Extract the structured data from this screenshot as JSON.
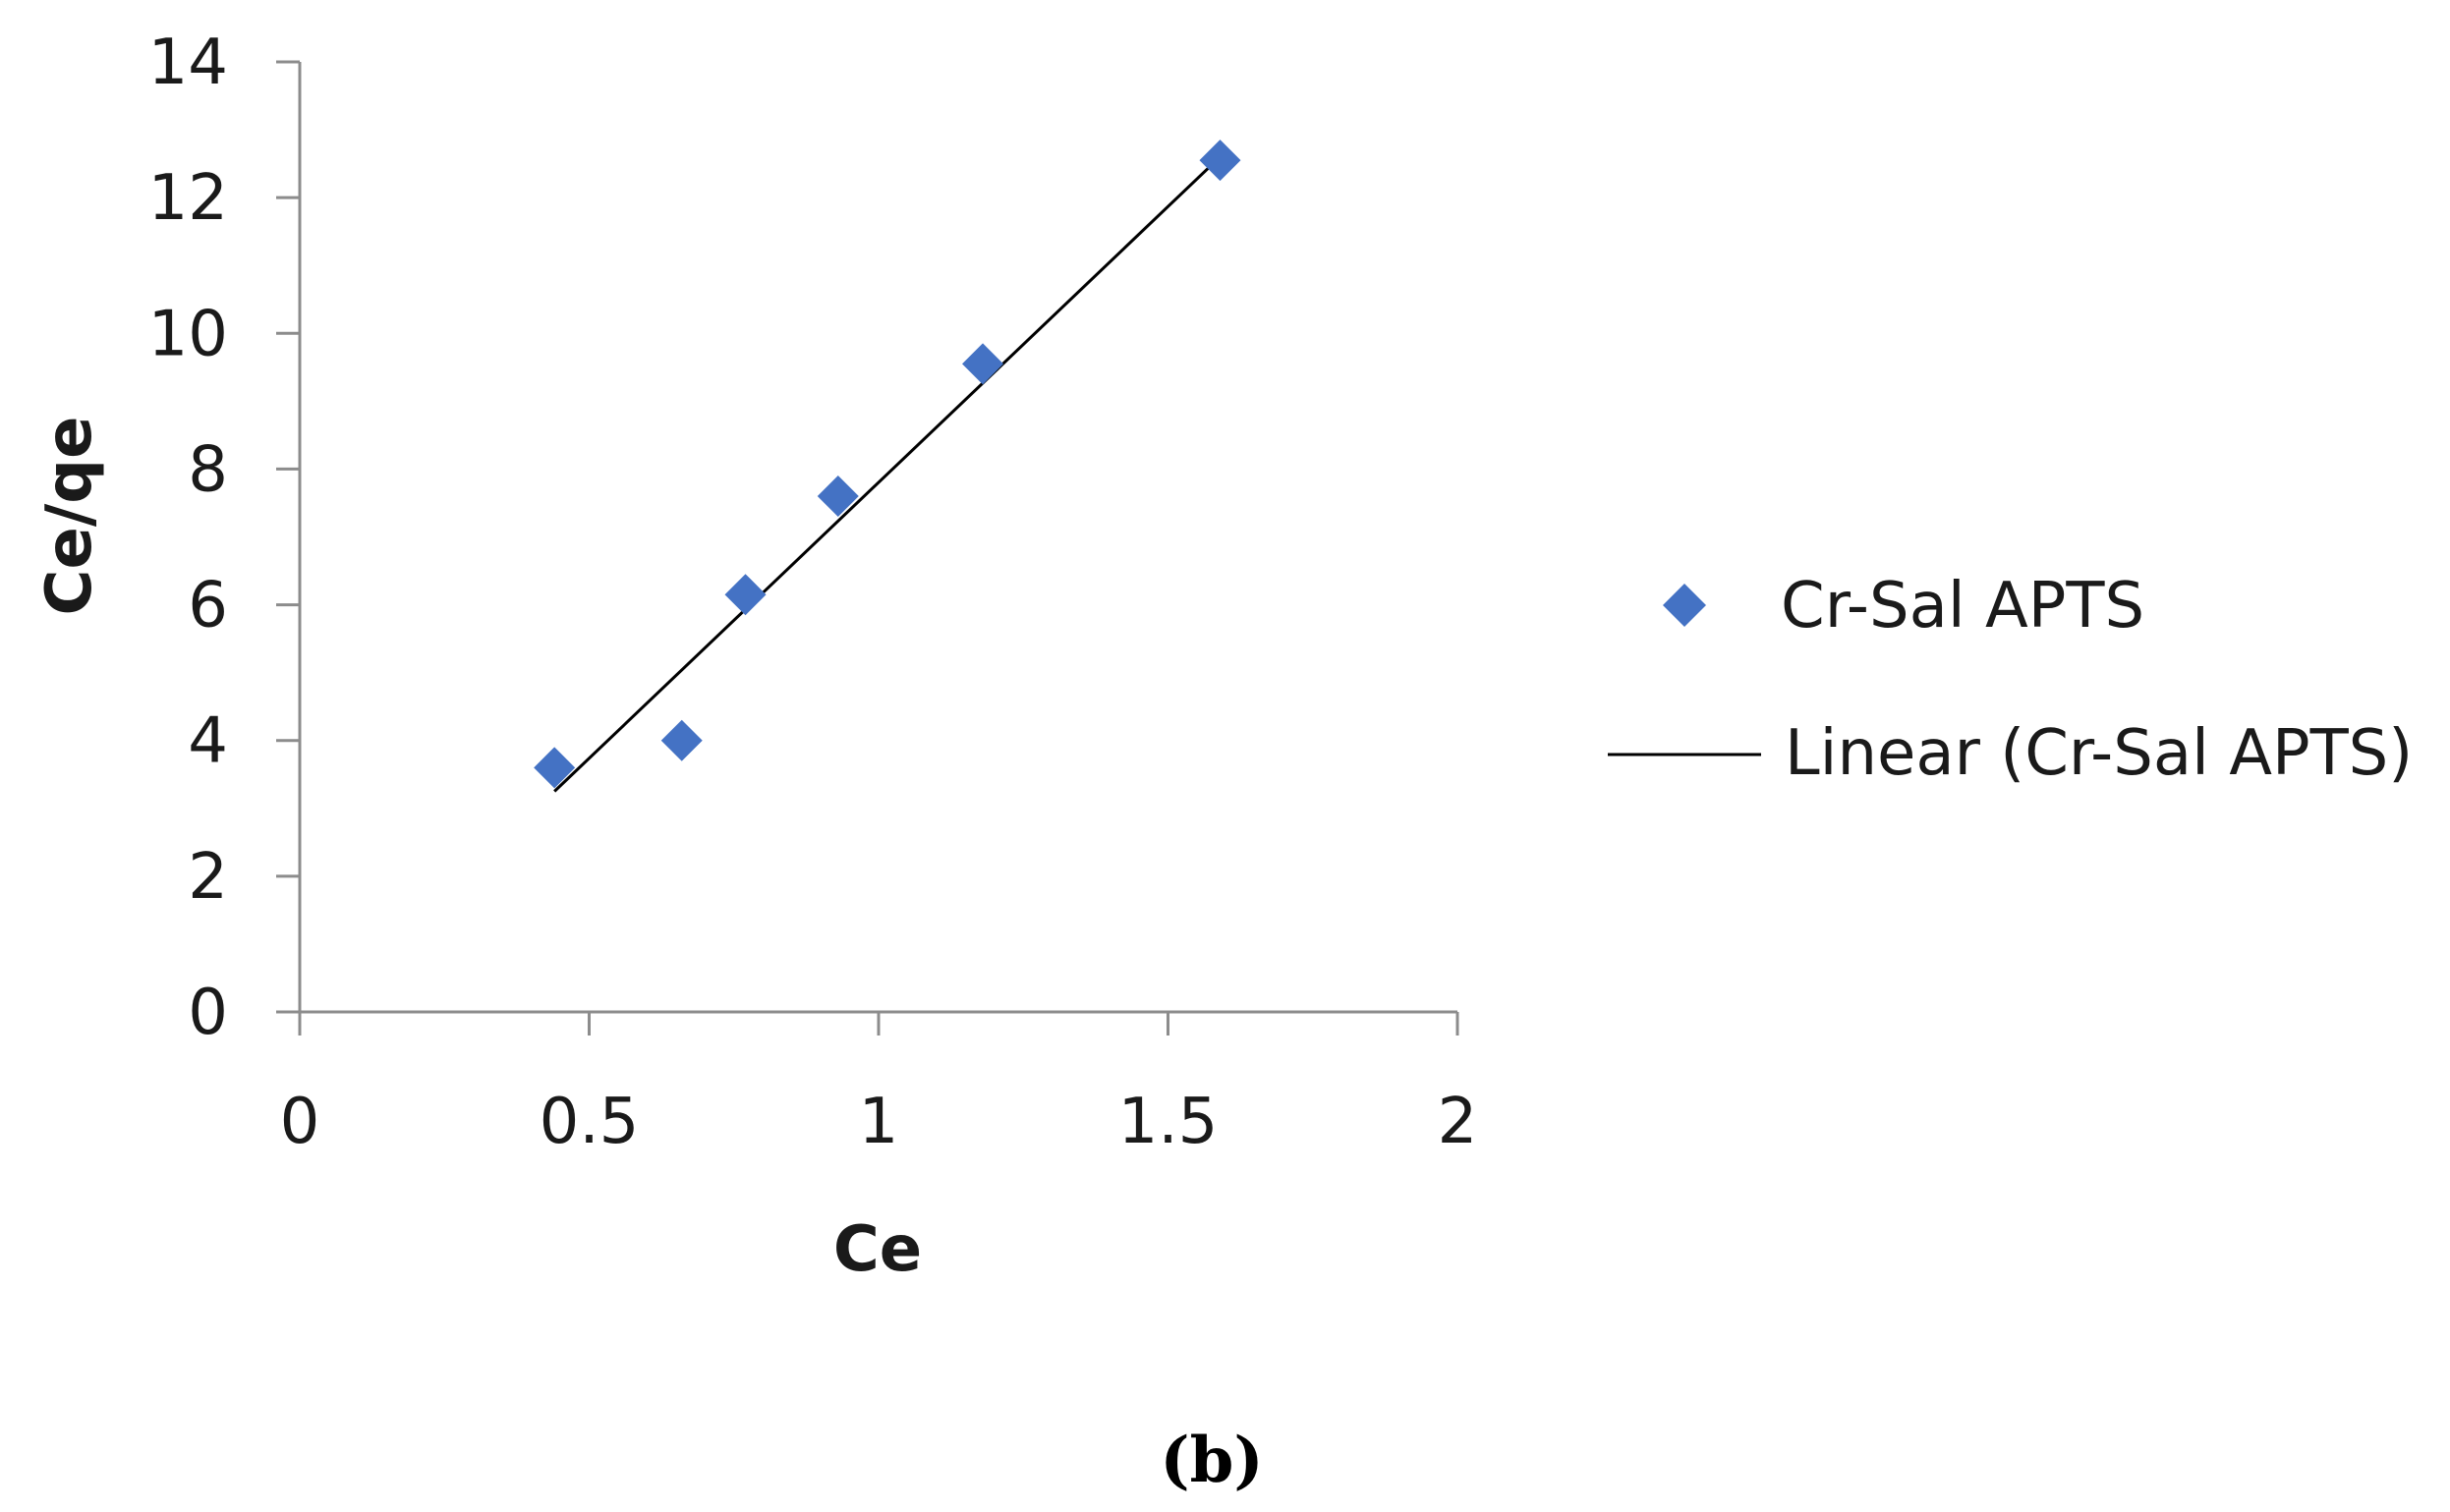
{
  "chart_data": {
    "type": "scatter",
    "xlabel": "Ce",
    "ylabel": "Ce/qe",
    "xlim": [
      0,
      2
    ],
    "ylim": [
      0,
      14
    ],
    "x_ticks": [
      0,
      0.5,
      1,
      1.5,
      2
    ],
    "x_tick_labels": [
      "0",
      "0.5",
      "1",
      "1.5",
      "2"
    ],
    "y_ticks": [
      0,
      2,
      4,
      6,
      8,
      10,
      12,
      14
    ],
    "y_tick_labels": [
      "0",
      "2",
      "4",
      "6",
      "8",
      "10",
      "12",
      "14"
    ],
    "grid": false,
    "legend_position": "right",
    "series": [
      {
        "name": "Cr-Sal APTS",
        "marker": "diamond",
        "color": "#4472C4",
        "x": [
          0.44,
          0.66,
          0.77,
          0.93,
          1.18,
          1.59
        ],
        "y": [
          3.6,
          4.0,
          6.15,
          7.6,
          9.55,
          12.55
        ]
      }
    ],
    "trendline": {
      "name": "Linear (Cr-Sal APTS)",
      "type": "linear",
      "color": "#000000",
      "x_range": [
        0.44,
        1.59
      ],
      "y_range": [
        3.25,
        12.6
      ]
    }
  },
  "caption": "(b)"
}
